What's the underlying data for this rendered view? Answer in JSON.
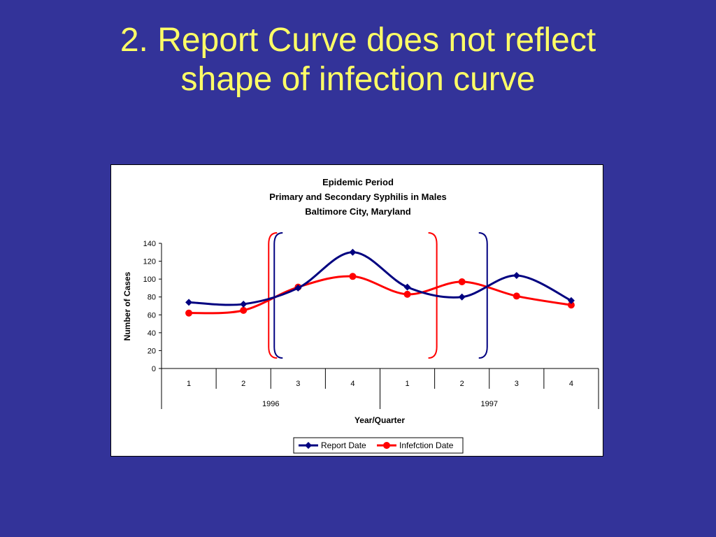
{
  "slide": {
    "title_line1": "2. Report Curve does not reflect",
    "title_line2": "shape of infection curve"
  },
  "colors": {
    "background": "#333399",
    "title": "#FFFF66",
    "report_series": "#000080",
    "infection_series": "#FF0000"
  },
  "chart_data": {
    "type": "line",
    "title_lines": [
      "Epidemic Period",
      "Primary and Secondary Syphilis in Males",
      "Baltimore City, Maryland"
    ],
    "xlabel": "Year/Quarter",
    "ylabel": "Number of Cases",
    "ylim": [
      0,
      140
    ],
    "yticks": [
      0,
      20,
      40,
      60,
      80,
      100,
      120,
      140
    ],
    "categories": [
      "1",
      "2",
      "3",
      "4",
      "1",
      "2",
      "3",
      "4"
    ],
    "groups": [
      {
        "label": "1996",
        "span": 4
      },
      {
        "label": "1997",
        "span": 4
      }
    ],
    "series": [
      {
        "name": "Report Date",
        "color": "#000080",
        "marker": "diamond",
        "values": [
          74,
          72,
          90,
          130,
          91,
          80,
          104,
          76
        ]
      },
      {
        "name": "Infefction Date",
        "color": "#FF0000",
        "marker": "circle",
        "values": [
          62,
          65,
          91,
          103,
          83,
          97,
          81,
          71
        ]
      }
    ],
    "brackets": [
      {
        "color": "#FF0000",
        "from_category": 2,
        "to_category": 5
      },
      {
        "color": "#000080",
        "from_category": 2,
        "to_category": 6
      }
    ],
    "grid": false,
    "legend": "bottom"
  }
}
